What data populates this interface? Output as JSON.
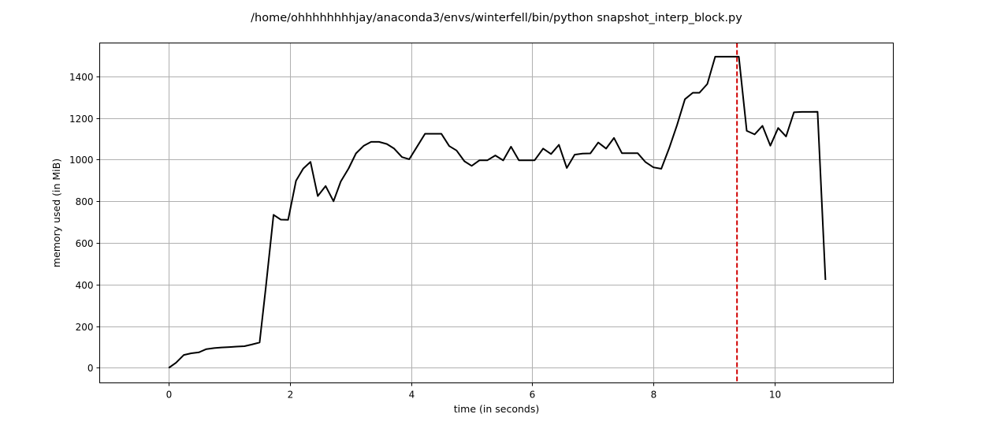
{
  "chart_data": {
    "type": "line",
    "title": "/home/ohhhhhhhhjay/anaconda3/envs/winterfell/bin/python snapshot_interp_block.py",
    "xlabel": "time (in seconds)",
    "ylabel": "memory used (in MiB)",
    "xlim": [
      -1.14,
      11.96
    ],
    "ylim": [
      -72,
      1560
    ],
    "xticks": [
      0,
      2,
      4,
      6,
      8,
      10
    ],
    "yticks": [
      0,
      200,
      400,
      600,
      800,
      1000,
      1200,
      1400
    ],
    "grid": true,
    "series": [
      {
        "color": "#000000",
        "x": [
          0,
          0.12,
          0.25,
          0.37,
          0.5,
          0.62,
          0.75,
          0.87,
          1.0,
          1.12,
          1.25,
          1.37,
          1.5,
          1.6,
          1.73,
          1.85,
          1.97,
          2.1,
          2.22,
          2.34,
          2.46,
          2.59,
          2.72,
          2.84,
          2.97,
          3.09,
          3.22,
          3.34,
          3.47,
          3.6,
          3.72,
          3.85,
          3.97,
          4.1,
          4.23,
          4.36,
          4.5,
          4.63,
          4.75,
          4.88,
          5.0,
          5.13,
          5.26,
          5.39,
          5.52,
          5.65,
          5.78,
          5.91,
          6.04,
          6.18,
          6.31,
          6.44,
          6.57,
          6.7,
          6.83,
          6.96,
          7.09,
          7.22,
          7.35,
          7.48,
          7.61,
          7.74,
          7.87,
          8.0,
          8.13,
          8.26,
          8.39,
          8.52,
          8.65,
          8.76,
          8.89,
          9.02,
          9.15,
          9.28,
          9.41,
          9.54,
          9.67,
          9.8,
          9.93,
          10.06,
          10.19,
          10.32,
          10.45,
          10.58,
          10.71,
          10.84
        ],
        "y": [
          0,
          25,
          62,
          70,
          75,
          90,
          95,
          98,
          100,
          102,
          104,
          112,
          122,
          380,
          735,
          712,
          711,
          898,
          957,
          989,
          825,
          873,
          800,
          895,
          958,
          1030,
          1067,
          1085,
          1085,
          1075,
          1053,
          1012,
          1002,
          1063,
          1124,
          1124,
          1124,
          1065,
          1044,
          992,
          970,
          997,
          997,
          1020,
          996,
          1062,
          997,
          997,
          997,
          1053,
          1027,
          1071,
          960,
          1024,
          1029,
          1030,
          1082,
          1053,
          1104,
          1031,
          1031,
          1031,
          988,
          963,
          956,
          1055,
          1166,
          1290,
          1321,
          1321,
          1363,
          1494,
          1494,
          1494,
          1494,
          1138,
          1121,
          1162,
          1067,
          1152,
          1111,
          1227,
          1229,
          1229,
          1230,
          422
        ]
      }
    ],
    "vline": {
      "x": 9.38,
      "color": "#d00000",
      "style": "dashed"
    }
  }
}
